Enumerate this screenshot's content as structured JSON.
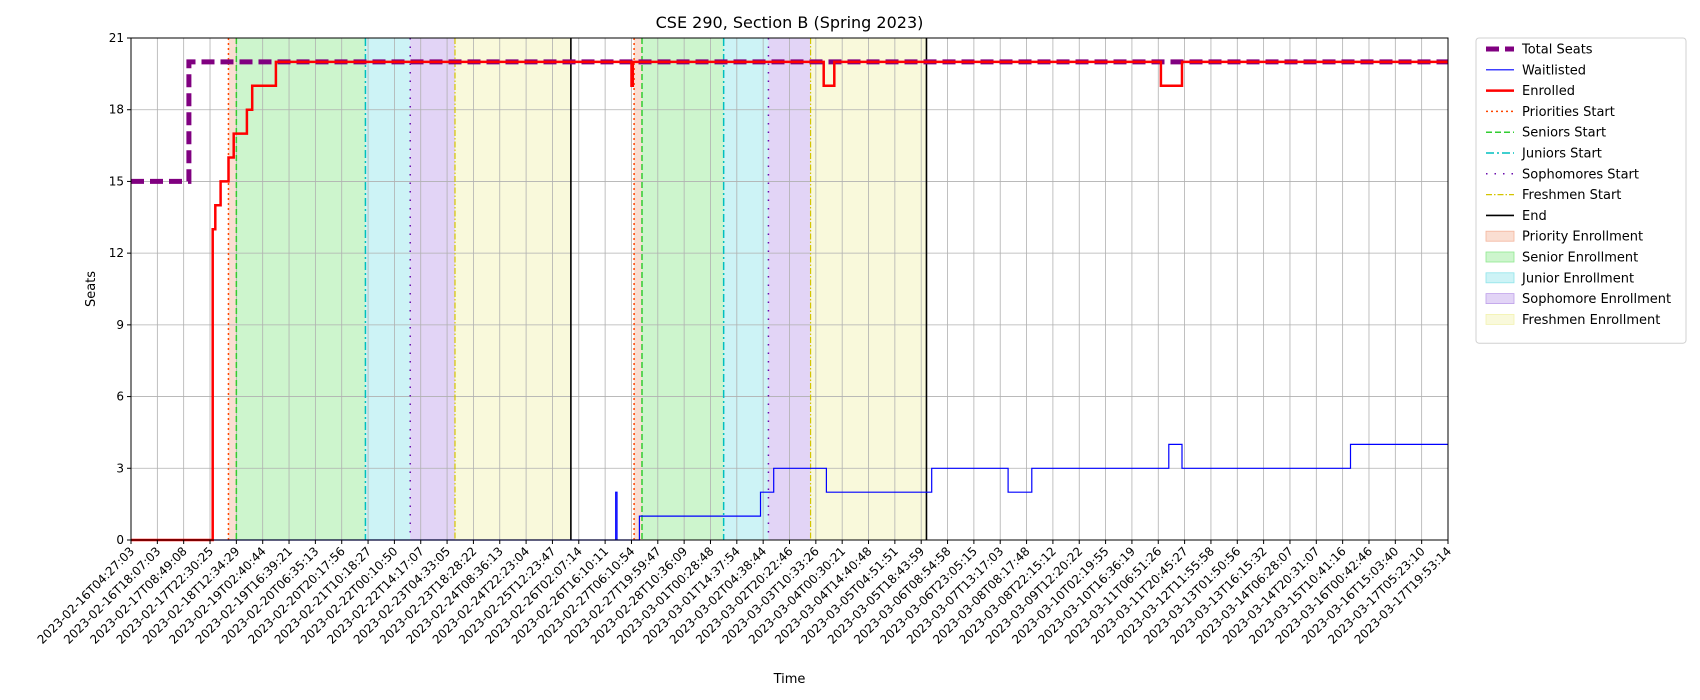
{
  "chart_data": {
    "type": "line",
    "title": "CSE 290, Section B (Spring 2023)",
    "xlabel": "Time",
    "ylabel": "Seats",
    "ylim": [
      0,
      21
    ],
    "yticks": [
      0,
      3,
      6,
      9,
      12,
      15,
      18,
      21
    ],
    "grid": true,
    "legend_position": "outside-right",
    "xlim": [
      "2023-02-16T04:27:03",
      "2023-03-17T19:53:14"
    ],
    "xtick_labels": [
      "2023-02-16T04:27:03",
      "2023-02-16T18:07:03",
      "2023-02-17T08:49:08",
      "2023-02-17T22:30:25",
      "2023-02-18T12:34:29",
      "2023-02-19T02:40:44",
      "2023-02-19T16:39:21",
      "2023-02-20T06:35:13",
      "2023-02-20T20:17:56",
      "2023-02-21T10:18:27",
      "2023-02-22T00:10:50",
      "2023-02-22T14:17:07",
      "2023-02-23T04:33:05",
      "2023-02-23T18:28:22",
      "2023-02-24T08:36:13",
      "2023-02-24T22:23:04",
      "2023-02-25T12:23:47",
      "2023-02-26T02:07:14",
      "2023-02-26T16:10:11",
      "2023-02-27T06:10:54",
      "2023-02-27T19:59:47",
      "2023-02-28T10:36:09",
      "2023-03-01T00:28:48",
      "2023-03-01T14:37:54",
      "2023-03-02T04:38:44",
      "2023-03-02T20:22:46",
      "2023-03-03T10:33:26",
      "2023-03-04T00:30:21",
      "2023-03-04T14:40:48",
      "2023-03-05T04:51:51",
      "2023-03-05T18:43:59",
      "2023-03-06T08:54:58",
      "2023-03-06T23:05:15",
      "2023-03-07T13:17:03",
      "2023-03-08T08:17:48",
      "2023-03-08T22:15:12",
      "2023-03-09T12:20:22",
      "2023-03-10T02:19:55",
      "2023-03-10T16:36:19",
      "2023-03-11T06:51:26",
      "2023-03-11T20:45:27",
      "2023-03-12T11:55:58",
      "2023-03-13T01:50:56",
      "2023-03-13T16:15:32",
      "2023-03-14T06:28:07",
      "2023-03-14T20:31:07",
      "2023-03-15T10:41:16",
      "2023-03-16T00:42:46",
      "2023-03-16T15:03:40",
      "2023-03-17T05:23:10",
      "2023-03-17T19:53:14"
    ],
    "series": [
      {
        "name": "Total Seats",
        "color": "#800080",
        "style": "dashed-thick",
        "points": [
          [
            0,
            15
          ],
          [
            2.2,
            15
          ],
          [
            2.2,
            20
          ],
          [
            50,
            20
          ]
        ]
      },
      {
        "name": "Waitlisted",
        "color": "#0000ff",
        "style": "solid-thin",
        "points": [
          [
            0,
            0
          ],
          [
            18.4,
            0
          ],
          [
            18.4,
            2
          ],
          [
            18.45,
            2
          ],
          [
            18.45,
            0
          ],
          [
            19.3,
            0
          ],
          [
            19.3,
            1
          ],
          [
            23.9,
            1
          ],
          [
            23.9,
            2
          ],
          [
            24.4,
            2
          ],
          [
            24.4,
            3
          ],
          [
            26.4,
            3
          ],
          [
            26.4,
            2
          ],
          [
            30.4,
            2
          ],
          [
            30.4,
            3
          ],
          [
            33.3,
            3
          ],
          [
            33.3,
            2
          ],
          [
            34.2,
            2
          ],
          [
            34.2,
            3
          ],
          [
            39.4,
            3
          ],
          [
            39.4,
            4
          ],
          [
            39.9,
            4
          ],
          [
            39.9,
            3
          ],
          [
            46.3,
            3
          ],
          [
            46.3,
            4
          ],
          [
            50,
            4
          ]
        ]
      },
      {
        "name": "Enrolled",
        "color": "#ff0000",
        "style": "solid-thick",
        "points": [
          [
            0,
            0
          ],
          [
            3.1,
            0
          ],
          [
            3.1,
            13
          ],
          [
            3.2,
            13
          ],
          [
            3.2,
            14
          ],
          [
            3.4,
            14
          ],
          [
            3.4,
            15
          ],
          [
            3.7,
            15
          ],
          [
            3.7,
            16
          ],
          [
            3.9,
            16
          ],
          [
            3.9,
            17
          ],
          [
            4.4,
            17
          ],
          [
            4.4,
            18
          ],
          [
            4.6,
            18
          ],
          [
            4.6,
            19
          ],
          [
            5.5,
            19
          ],
          [
            5.5,
            20
          ],
          [
            19.0,
            20
          ],
          [
            19.0,
            19
          ],
          [
            19.05,
            19
          ],
          [
            19.05,
            20
          ],
          [
            26.3,
            20
          ],
          [
            26.3,
            19
          ],
          [
            26.7,
            19
          ],
          [
            26.7,
            20
          ],
          [
            39.1,
            20
          ],
          [
            39.1,
            19
          ],
          [
            39.9,
            19
          ],
          [
            39.9,
            20
          ],
          [
            50,
            20
          ]
        ]
      }
    ],
    "markers": [
      {
        "name": "Priorities Start",
        "color": "#ff4500",
        "style": "dotted",
        "x": [
          3.7,
          19.1
        ]
      },
      {
        "name": "Seniors Start",
        "color": "#32cd32",
        "style": "dashed",
        "x": [
          4.0,
          19.4
        ]
      },
      {
        "name": "Juniors Start",
        "color": "#00bfbf",
        "style": "dashdot",
        "x": [
          8.9,
          22.5
        ]
      },
      {
        "name": "Sophomores Start",
        "color": "#6a0dad",
        "style": "loosedot",
        "x": [
          10.6,
          24.2
        ]
      },
      {
        "name": "Freshmen Start",
        "color": "#d4c400",
        "style": "dashdot-thin",
        "x": [
          12.3,
          25.8
        ]
      },
      {
        "name": "End",
        "color": "#000000",
        "style": "solid",
        "x": [
          16.7,
          30.2
        ]
      }
    ],
    "regions": [
      {
        "name": "Priority Enrollment",
        "color": "#f4b59c",
        "spans": [
          [
            3.7,
            4.0
          ],
          [
            19.1,
            19.4
          ]
        ]
      },
      {
        "name": "Senior Enrollment",
        "color": "#90e890",
        "spans": [
          [
            4.0,
            8.9
          ],
          [
            19.4,
            22.5
          ]
        ]
      },
      {
        "name": "Junior Enrollment",
        "color": "#90e4ea",
        "spans": [
          [
            8.9,
            10.6
          ],
          [
            22.5,
            24.2
          ]
        ]
      },
      {
        "name": "Sophomore Enrollment",
        "color": "#bea0ea",
        "spans": [
          [
            10.6,
            12.3
          ],
          [
            24.2,
            25.8
          ]
        ]
      },
      {
        "name": "Freshmen Enrollment",
        "color": "#f2f2b0",
        "spans": [
          [
            12.3,
            16.7
          ],
          [
            25.8,
            30.2
          ]
        ]
      }
    ],
    "legend": [
      {
        "label": "Total Seats",
        "kind": "line",
        "color": "#800080",
        "style": "dashed-thick"
      },
      {
        "label": "Waitlisted",
        "kind": "line",
        "color": "#0000ff",
        "style": "solid-thin"
      },
      {
        "label": "Enrolled",
        "kind": "line",
        "color": "#ff0000",
        "style": "solid-thick"
      },
      {
        "label": "Priorities Start",
        "kind": "line",
        "color": "#ff4500",
        "style": "dotted"
      },
      {
        "label": "Seniors Start",
        "kind": "line",
        "color": "#32cd32",
        "style": "dashed"
      },
      {
        "label": "Juniors Start",
        "kind": "line",
        "color": "#00bfbf",
        "style": "dashdot"
      },
      {
        "label": "Sophomores Start",
        "kind": "line",
        "color": "#6a0dad",
        "style": "loosedot"
      },
      {
        "label": "Freshmen Start",
        "kind": "line",
        "color": "#d4c400",
        "style": "dashdot-thin"
      },
      {
        "label": "End",
        "kind": "line",
        "color": "#000000",
        "style": "solid"
      },
      {
        "label": "Priority Enrollment",
        "kind": "patch",
        "color": "#f4b59c"
      },
      {
        "label": "Senior Enrollment",
        "kind": "patch",
        "color": "#90e890"
      },
      {
        "label": "Junior Enrollment",
        "kind": "patch",
        "color": "#90e4ea"
      },
      {
        "label": "Sophomore Enrollment",
        "kind": "patch",
        "color": "#bea0ea"
      },
      {
        "label": "Freshmen Enrollment",
        "kind": "patch",
        "color": "#f2f2b0"
      }
    ]
  }
}
